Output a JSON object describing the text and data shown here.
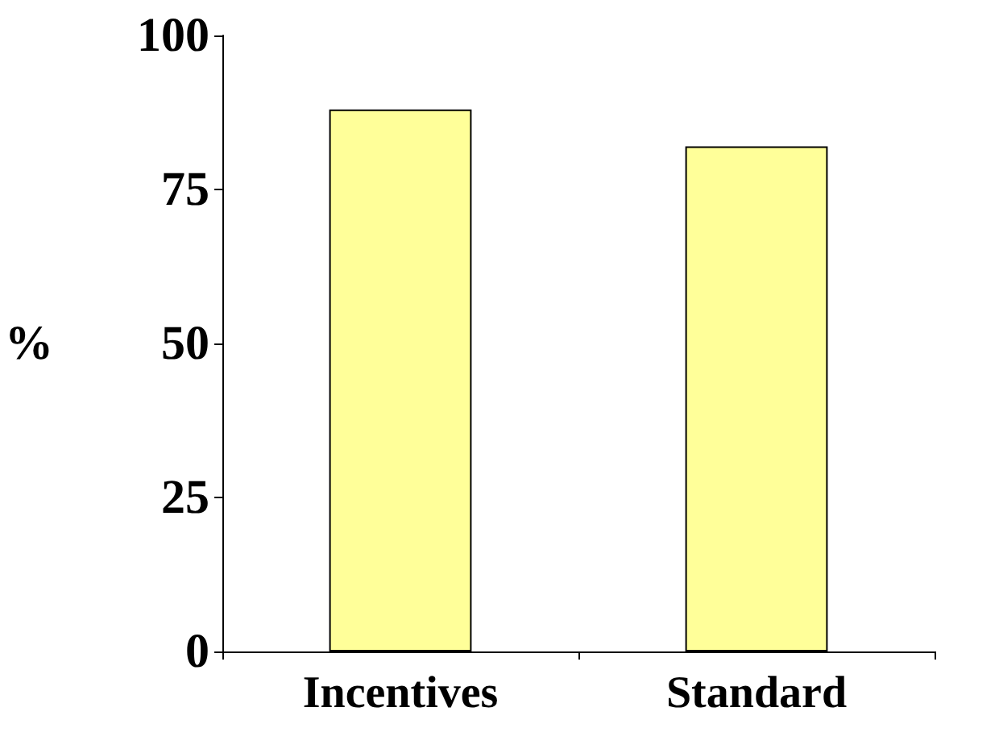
{
  "chart_data": {
    "type": "bar",
    "ylabel": "%",
    "categories": [
      "Incentives",
      "Standard"
    ],
    "values": [
      88,
      82
    ],
    "color": "#ffff99",
    "ylim": [
      0,
      100
    ],
    "yticks": [
      0,
      25,
      50,
      75,
      100
    ],
    "grid": false
  }
}
